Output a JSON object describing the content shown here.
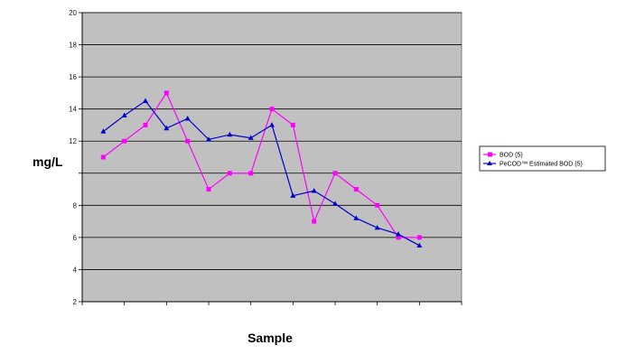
{
  "chart_data": {
    "type": "line",
    "title": "",
    "xlabel": "Sample",
    "ylabel": "mg/L",
    "ylim": [
      2,
      20
    ],
    "yticks": [
      2,
      4,
      6,
      8,
      10,
      12,
      14,
      16,
      18,
      20
    ],
    "ytick_labels": [
      "2",
      "4",
      "6",
      "8",
      "",
      "12",
      "14",
      "16",
      "18",
      "20"
    ],
    "grid": true,
    "legend_position": "right",
    "plot_background": "#c0c0c0",
    "x": [
      1,
      2,
      3,
      4,
      5,
      6,
      7,
      8,
      9,
      10,
      11,
      12,
      13,
      14,
      15,
      16
    ],
    "series": [
      {
        "name": "BOD (5)",
        "color": "#ff00ff",
        "marker": "square",
        "values": [
          11.0,
          12.0,
          13.0,
          15.0,
          12.0,
          9.0,
          10.0,
          10.0,
          14.0,
          13.0,
          7.0,
          10.0,
          9.0,
          8.0,
          6.0,
          6.0
        ]
      },
      {
        "name": "PeCOD™ Estimated BOD (5)",
        "color": "#0000cc",
        "marker": "triangle",
        "values": [
          12.6,
          13.6,
          14.5,
          12.8,
          13.4,
          12.1,
          12.4,
          12.2,
          13.0,
          8.6,
          8.9,
          8.1,
          7.2,
          6.6,
          6.2,
          5.5
        ]
      }
    ]
  }
}
